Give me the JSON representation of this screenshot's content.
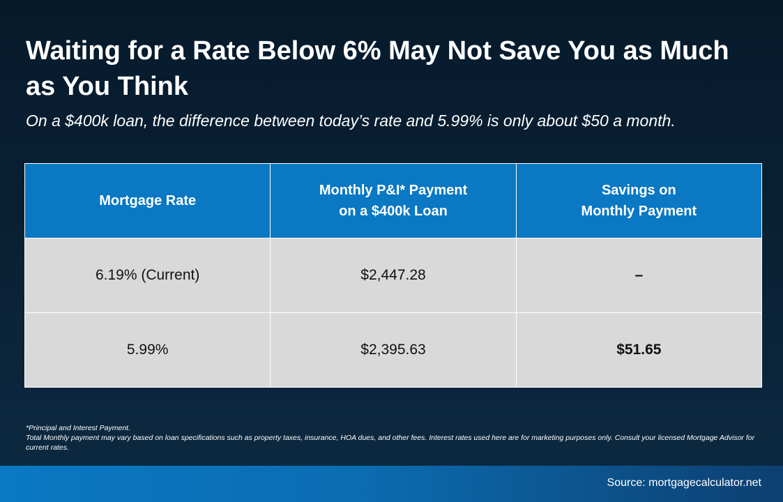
{
  "header": {
    "title": "Waiting for a Rate Below 6% May Not Save You as Much as You Think",
    "subtitle": "On a $400k loan, the difference between today’s rate and 5.99% is only about $50 a month."
  },
  "chart_data": {
    "type": "table",
    "columns": [
      {
        "lines": [
          "Mortgage Rate"
        ]
      },
      {
        "lines": [
          "Monthly P&I* Payment",
          "on a $400k Loan"
        ]
      },
      {
        "lines": [
          "Savings on",
          "Monthly Payment"
        ]
      }
    ],
    "rows": [
      [
        "6.19% (Current)",
        "$2,447.28",
        "–"
      ],
      [
        "5.99%",
        "$2,395.63",
        "$51.65"
      ]
    ]
  },
  "footnotes": {
    "line1": "*Principal and Interest Payment.",
    "line2": "Total Monthly payment may vary based on loan specifications such as property taxes, insurance, HOA dues, and other fees. Interest rates used here are for marketing purposes only. Consult your licensed Mortgage Advisor for current rates."
  },
  "source": "Source: mortgagecalculator.net",
  "colors": {
    "header_fill": "#0a78c3",
    "cell_fill": "#d9d9d9",
    "background": "#061a2b"
  }
}
